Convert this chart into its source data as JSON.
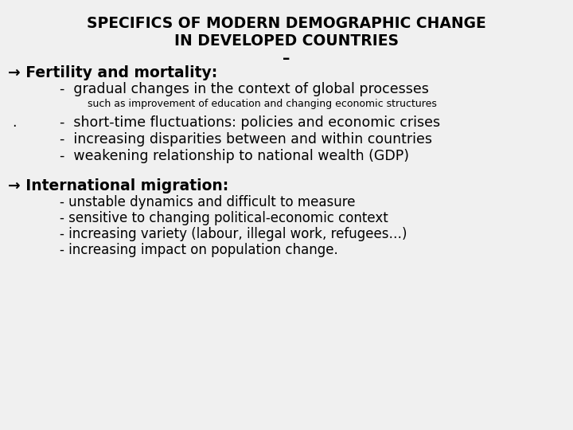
{
  "title_line1": "SPECIFICS OF MODERN DEMOGRAPHIC CHANGE",
  "title_line2": "IN DEVELOPED COUNTRIES",
  "title_dash": "–",
  "bg_color": "#f0f0f0",
  "text_color": "#000000",
  "arrow": "→",
  "section1_header": "Fertility and mortality:",
  "section1_bullet1": "-  gradual changes in the context of global processes",
  "section1_sub": "such as improvement of education and changing economic structures",
  "section1_bullet2": "-  short-time fluctuations: policies and economic crises",
  "section1_bullet3": "-  increasing disparities between and within countries",
  "section1_bullet4": "-  weakening relationship to national wealth (GDP)",
  "section2_header": "International migration:",
  "section2_bullet1": "- unstable dynamics and difficult to measure",
  "section2_bullet2": "- sensitive to changing political-economic context",
  "section2_bullet3": "- increasing variety (labour, illegal work, refugees…)",
  "section2_bullet4": "- increasing impact on population change.",
  "dot": ".",
  "title_fontsize": 13.5,
  "header_fontsize": 13.5,
  "bullet1_fontsize": 12.5,
  "bullet2_fontsize": 12.0,
  "sub_fontsize": 9.0
}
